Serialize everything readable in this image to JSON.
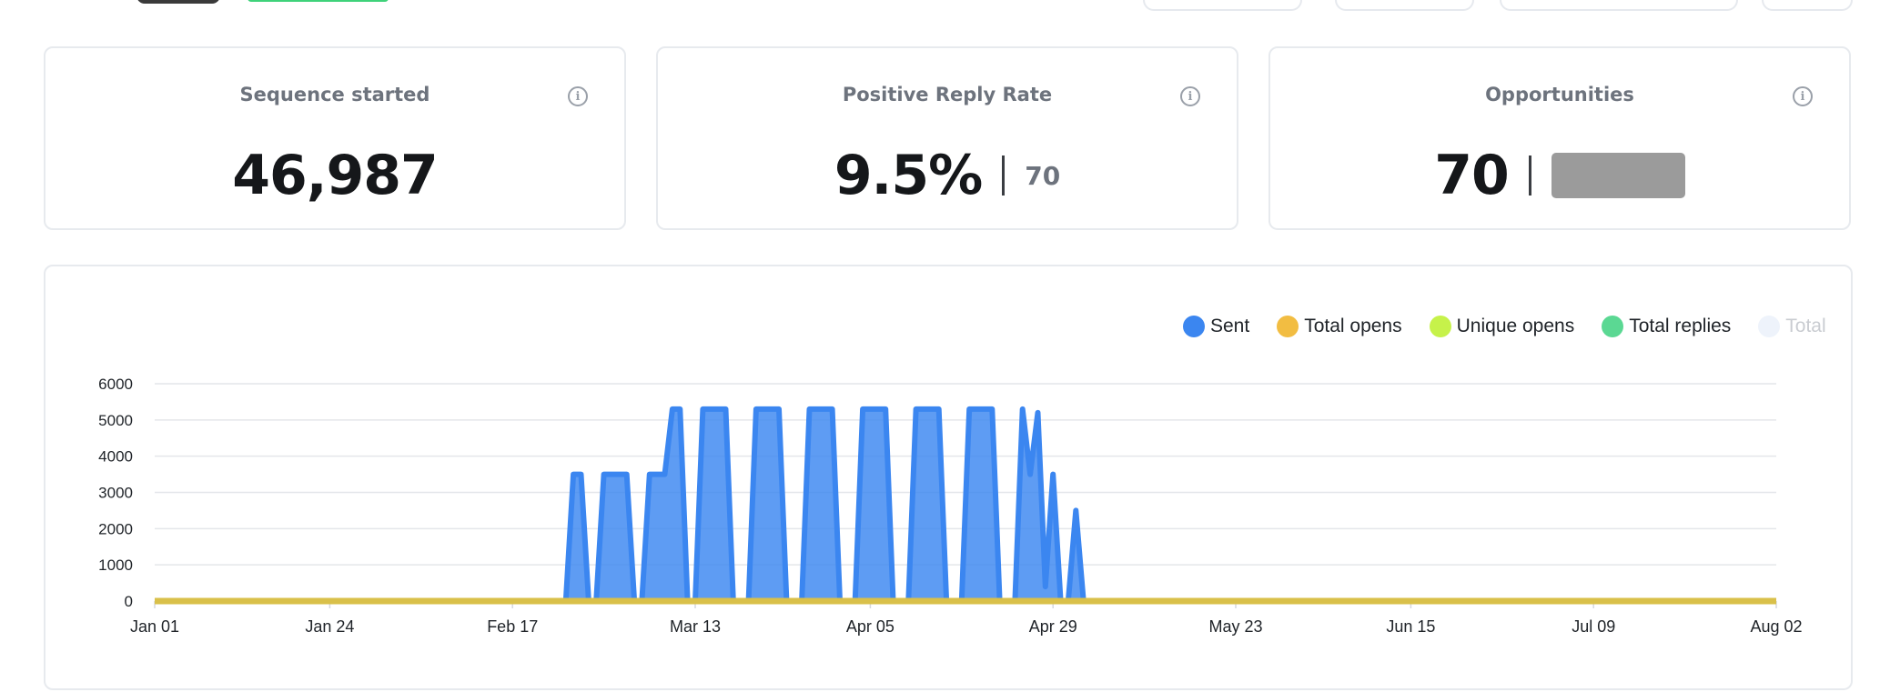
{
  "stats": [
    {
      "title": "Sequence started",
      "value": "46,987",
      "sub": "",
      "redacted": false
    },
    {
      "title": "Positive Reply Rate",
      "value": "9.5%",
      "sub": "70",
      "redacted": false
    },
    {
      "title": "Opportunities",
      "value": "70",
      "sub": "",
      "redacted": true
    }
  ],
  "info_icon": "info-icon",
  "legend": [
    {
      "label": "Sent",
      "color": "#3b86f0"
    },
    {
      "label": "Total opens",
      "color": "#f2bd42"
    },
    {
      "label": "Unique opens",
      "color": "#c6f24a"
    },
    {
      "label": "Total replies",
      "color": "#5bd893"
    },
    {
      "label": "Total",
      "color": "#eef3fb"
    }
  ],
  "chart_data": {
    "type": "area",
    "y_ticks": [
      "6000",
      "5000",
      "4000",
      "3000",
      "2000",
      "1000",
      "0"
    ],
    "ylim": [
      0,
      6000
    ],
    "x_ticks": [
      "Jan 01",
      "Jan 24",
      "Feb 17",
      "Mar 13",
      "Apr 05",
      "Apr 29",
      "May 23",
      "Jun 15",
      "Jul 09",
      "Aug 02"
    ],
    "grid": true,
    "legend_position": "top-right",
    "series": [
      {
        "name": "Sent",
        "color": "#3b86f0",
        "points": [
          [
            "Jan 01",
            0
          ],
          [
            "Feb 24",
            0
          ],
          [
            "Feb 25",
            3500
          ],
          [
            "Feb 26",
            3500
          ],
          [
            "Feb 27",
            0
          ],
          [
            "Feb 28",
            0
          ],
          [
            "Mar 01",
            3500
          ],
          [
            "Mar 04",
            3500
          ],
          [
            "Mar 05",
            0
          ],
          [
            "Mar 06",
            0
          ],
          [
            "Mar 07",
            3500
          ],
          [
            "Mar 09",
            3500
          ],
          [
            "Mar 10",
            5300
          ],
          [
            "Mar 11",
            5300
          ],
          [
            "Mar 12",
            0
          ],
          [
            "Mar 13",
            0
          ],
          [
            "Mar 14",
            5300
          ],
          [
            "Mar 17",
            5300
          ],
          [
            "Mar 18",
            0
          ],
          [
            "Mar 20",
            0
          ],
          [
            "Mar 21",
            5300
          ],
          [
            "Mar 24",
            5300
          ],
          [
            "Mar 25",
            0
          ],
          [
            "Mar 27",
            0
          ],
          [
            "Mar 28",
            5300
          ],
          [
            "Mar 31",
            5300
          ],
          [
            "Apr 01",
            0
          ],
          [
            "Apr 03",
            0
          ],
          [
            "Apr 04",
            5300
          ],
          [
            "Apr 07",
            5300
          ],
          [
            "Apr 08",
            0
          ],
          [
            "Apr 10",
            0
          ],
          [
            "Apr 11",
            5300
          ],
          [
            "Apr 14",
            5300
          ],
          [
            "Apr 15",
            0
          ],
          [
            "Apr 17",
            0
          ],
          [
            "Apr 18",
            5300
          ],
          [
            "Apr 21",
            5300
          ],
          [
            "Apr 22",
            0
          ],
          [
            "Apr 24",
            0
          ],
          [
            "Apr 25",
            5300
          ],
          [
            "Apr 26",
            3500
          ],
          [
            "Apr 27",
            5200
          ],
          [
            "Apr 28",
            400
          ],
          [
            "Apr 29",
            3500
          ],
          [
            "Apr 30",
            0
          ],
          [
            "May 01",
            0
          ],
          [
            "May 02",
            2500
          ],
          [
            "May 03",
            0
          ],
          [
            "Aug 02",
            0
          ]
        ]
      },
      {
        "name": "Total opens",
        "color": "#d9c04a",
        "points": [
          [
            "Jan 01",
            0
          ],
          [
            "Aug 02",
            0
          ]
        ]
      }
    ]
  }
}
